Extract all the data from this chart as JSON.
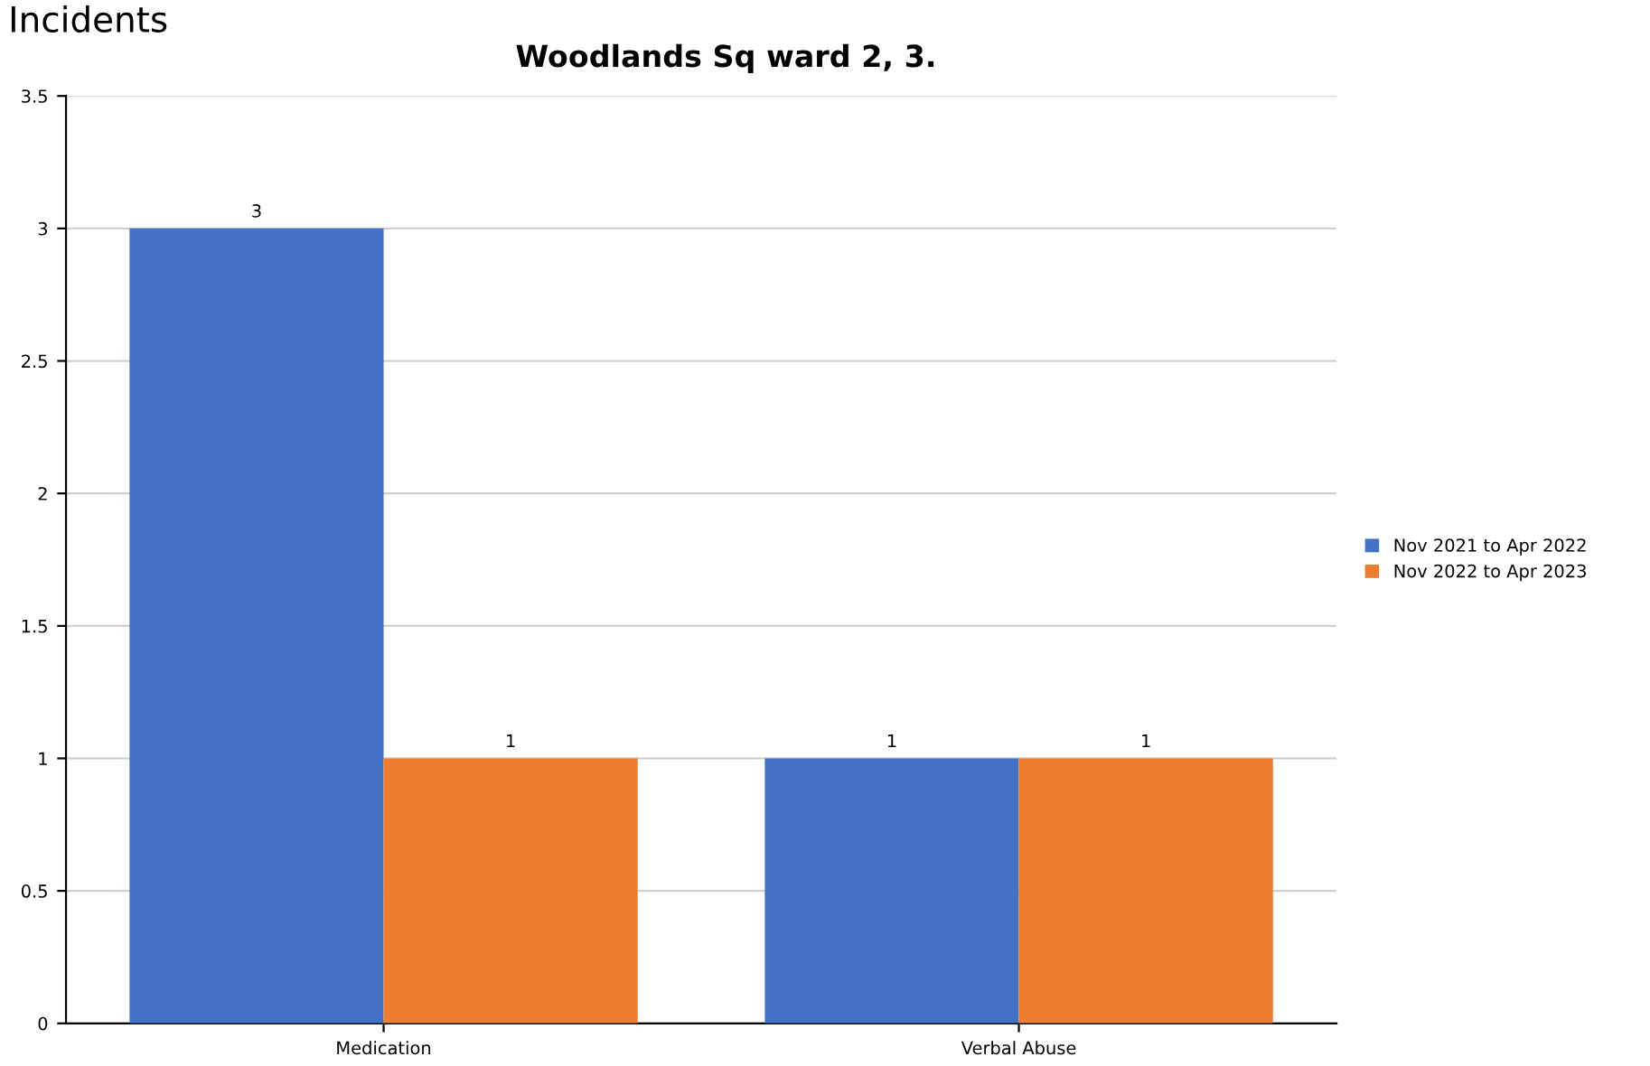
{
  "chart_data": {
    "type": "bar",
    "title": "Woodlands Sq ward 2, 3.",
    "annotations": [
      "Incidents"
    ],
    "categories": [
      "Medication",
      "Verbal Abuse"
    ],
    "series": [
      {
        "name": "Nov 2021 to Apr 2022",
        "color": "#4472c4",
        "values": [
          3,
          1
        ]
      },
      {
        "name": "Nov 2022 to Apr 2023",
        "color": "#ed7d31",
        "values": [
          1,
          1
        ]
      }
    ],
    "ylim": [
      0,
      3.5
    ],
    "yticks": [
      0,
      0.5,
      1,
      1.5,
      2,
      2.5,
      3,
      3.5
    ],
    "grid": "y",
    "legend": "right",
    "data_labels": true
  }
}
